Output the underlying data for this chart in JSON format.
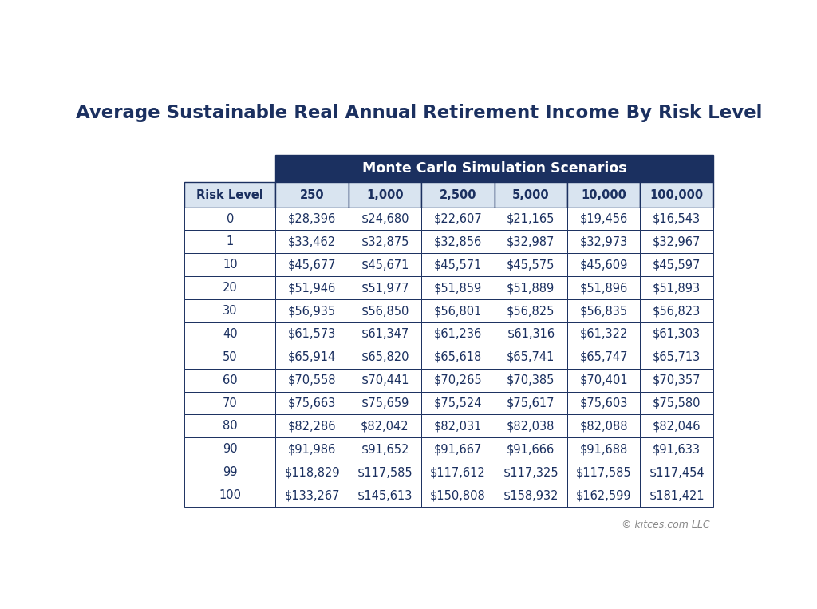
{
  "title": "Average Sustainable Real Annual Retirement Income By Risk Level",
  "header_group": "Monte Carlo Simulation Scenarios",
  "columns": [
    "Risk Level",
    "250",
    "1,000",
    "2,500",
    "5,000",
    "10,000",
    "100,000"
  ],
  "rows": [
    [
      "0",
      "$28,396",
      "$24,680",
      "$22,607",
      "$21,165",
      "$19,456",
      "$16,543"
    ],
    [
      "1",
      "$33,462",
      "$32,875",
      "$32,856",
      "$32,987",
      "$32,973",
      "$32,967"
    ],
    [
      "10",
      "$45,677",
      "$45,671",
      "$45,571",
      "$45,575",
      "$45,609",
      "$45,597"
    ],
    [
      "20",
      "$51,946",
      "$51,977",
      "$51,859",
      "$51,889",
      "$51,896",
      "$51,893"
    ],
    [
      "30",
      "$56,935",
      "$56,850",
      "$56,801",
      "$56,825",
      "$56,835",
      "$56,823"
    ],
    [
      "40",
      "$61,573",
      "$61,347",
      "$61,236",
      "$61,316",
      "$61,322",
      "$61,303"
    ],
    [
      "50",
      "$65,914",
      "$65,820",
      "$65,618",
      "$65,741",
      "$65,747",
      "$65,713"
    ],
    [
      "60",
      "$70,558",
      "$70,441",
      "$70,265",
      "$70,385",
      "$70,401",
      "$70,357"
    ],
    [
      "70",
      "$75,663",
      "$75,659",
      "$75,524",
      "$75,617",
      "$75,603",
      "$75,580"
    ],
    [
      "80",
      "$82,286",
      "$82,042",
      "$82,031",
      "$82,038",
      "$82,088",
      "$82,046"
    ],
    [
      "90",
      "$91,986",
      "$91,652",
      "$91,667",
      "$91,666",
      "$91,688",
      "$91,633"
    ],
    [
      "99",
      "$118,829",
      "$117,585",
      "$117,612",
      "$117,325",
      "$117,585",
      "$117,454"
    ],
    [
      "100",
      "$133,267",
      "$145,613",
      "$150,808",
      "$158,932",
      "$162,599",
      "$181,421"
    ]
  ],
  "header_group_bg": "#1b3060",
  "header_group_text": "#ffffff",
  "col_header_bg": "#d9e4f0",
  "col_header_text": "#1b3060",
  "data_row_bg": "#ffffff",
  "border_color": "#1b3060",
  "text_color": "#1b3060",
  "footer_text": "© kitces.com LLC",
  "bg_color": "#ffffff",
  "title_color": "#1b3060"
}
